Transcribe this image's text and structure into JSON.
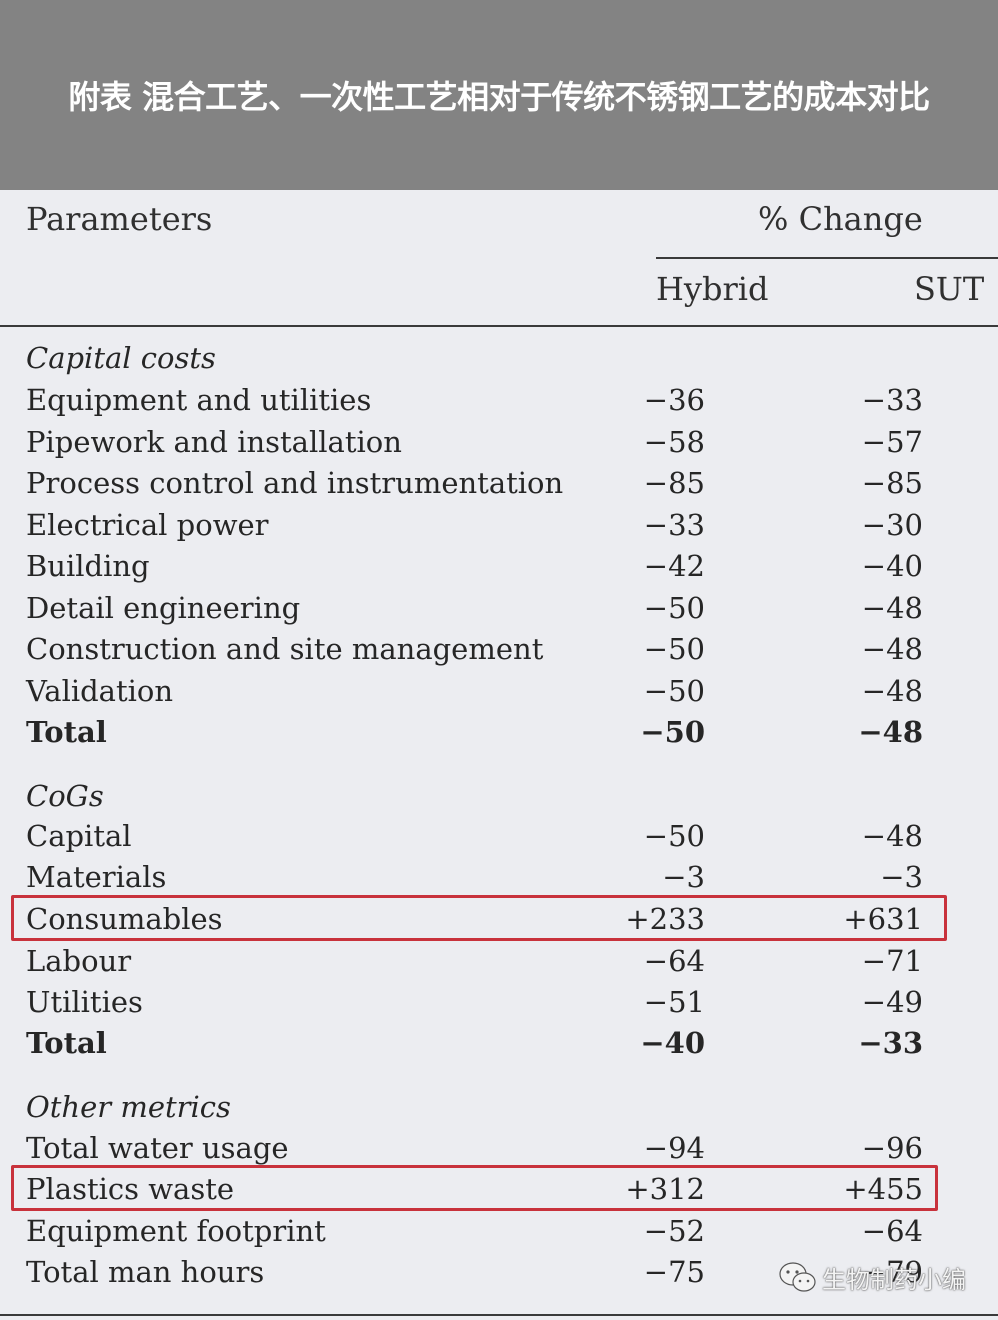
{
  "title": "附表 混合工艺、一次性工艺相对于传统不锈钢工艺的成本对比",
  "header": {
    "parameters": "Parameters",
    "change": "% Change",
    "hybrid": "Hybrid",
    "sut": "SUT"
  },
  "rows": [
    {
      "label": "Capital costs",
      "hybrid": "",
      "sut": "",
      "kind": "section"
    },
    {
      "label": "Equipment and utilities",
      "hybrid": "−36",
      "sut": "−33",
      "kind": "item"
    },
    {
      "label": "Pipework and installation",
      "hybrid": "−58",
      "sut": "−57",
      "kind": "item"
    },
    {
      "label": "Process control and instrumentation",
      "hybrid": "−85",
      "sut": "−85",
      "kind": "item"
    },
    {
      "label": "Electrical power",
      "hybrid": "−33",
      "sut": "−30",
      "kind": "item"
    },
    {
      "label": "Building",
      "hybrid": "−42",
      "sut": "−40",
      "kind": "item"
    },
    {
      "label": "Detail engineering",
      "hybrid": "−50",
      "sut": "−48",
      "kind": "item"
    },
    {
      "label": "Construction and site management",
      "hybrid": "−50",
      "sut": "−48",
      "kind": "item"
    },
    {
      "label": "Validation",
      "hybrid": "−50",
      "sut": "−48",
      "kind": "item"
    },
    {
      "label": "Total",
      "hybrid": "−50",
      "sut": "−48",
      "kind": "total"
    },
    {
      "label": "CoGs",
      "hybrid": "",
      "sut": "",
      "kind": "section"
    },
    {
      "label": "Capital",
      "hybrid": "−50",
      "sut": "−48",
      "kind": "item"
    },
    {
      "label": "Materials",
      "hybrid": "−3",
      "sut": "−3",
      "kind": "item"
    },
    {
      "label": "Consumables",
      "hybrid": "+233",
      "sut": "+631",
      "kind": "item",
      "highlighted": true
    },
    {
      "label": "Labour",
      "hybrid": "−64",
      "sut": "−71",
      "kind": "item"
    },
    {
      "label": "Utilities",
      "hybrid": "−51",
      "sut": "−49",
      "kind": "item"
    },
    {
      "label": "Total",
      "hybrid": "−40",
      "sut": "−33",
      "kind": "total"
    },
    {
      "label": "Other metrics",
      "hybrid": "",
      "sut": "",
      "kind": "section"
    },
    {
      "label": "Total water usage",
      "hybrid": "−94",
      "sut": "−96",
      "kind": "item"
    },
    {
      "label": "Plastics waste",
      "hybrid": "+312",
      "sut": "+455",
      "kind": "item",
      "highlighted": true
    },
    {
      "label": "Equipment footprint",
      "hybrid": "−52",
      "sut": "−64",
      "kind": "item"
    },
    {
      "label": "Total man hours",
      "hybrid": "−75",
      "sut": "−79",
      "kind": "item"
    }
  ],
  "watermark": {
    "text": "生物制药小编",
    "icon": "wechat-icon"
  },
  "colors": {
    "banner": "#838383",
    "highlight": "#c8323c",
    "background": "#ecedf1"
  }
}
